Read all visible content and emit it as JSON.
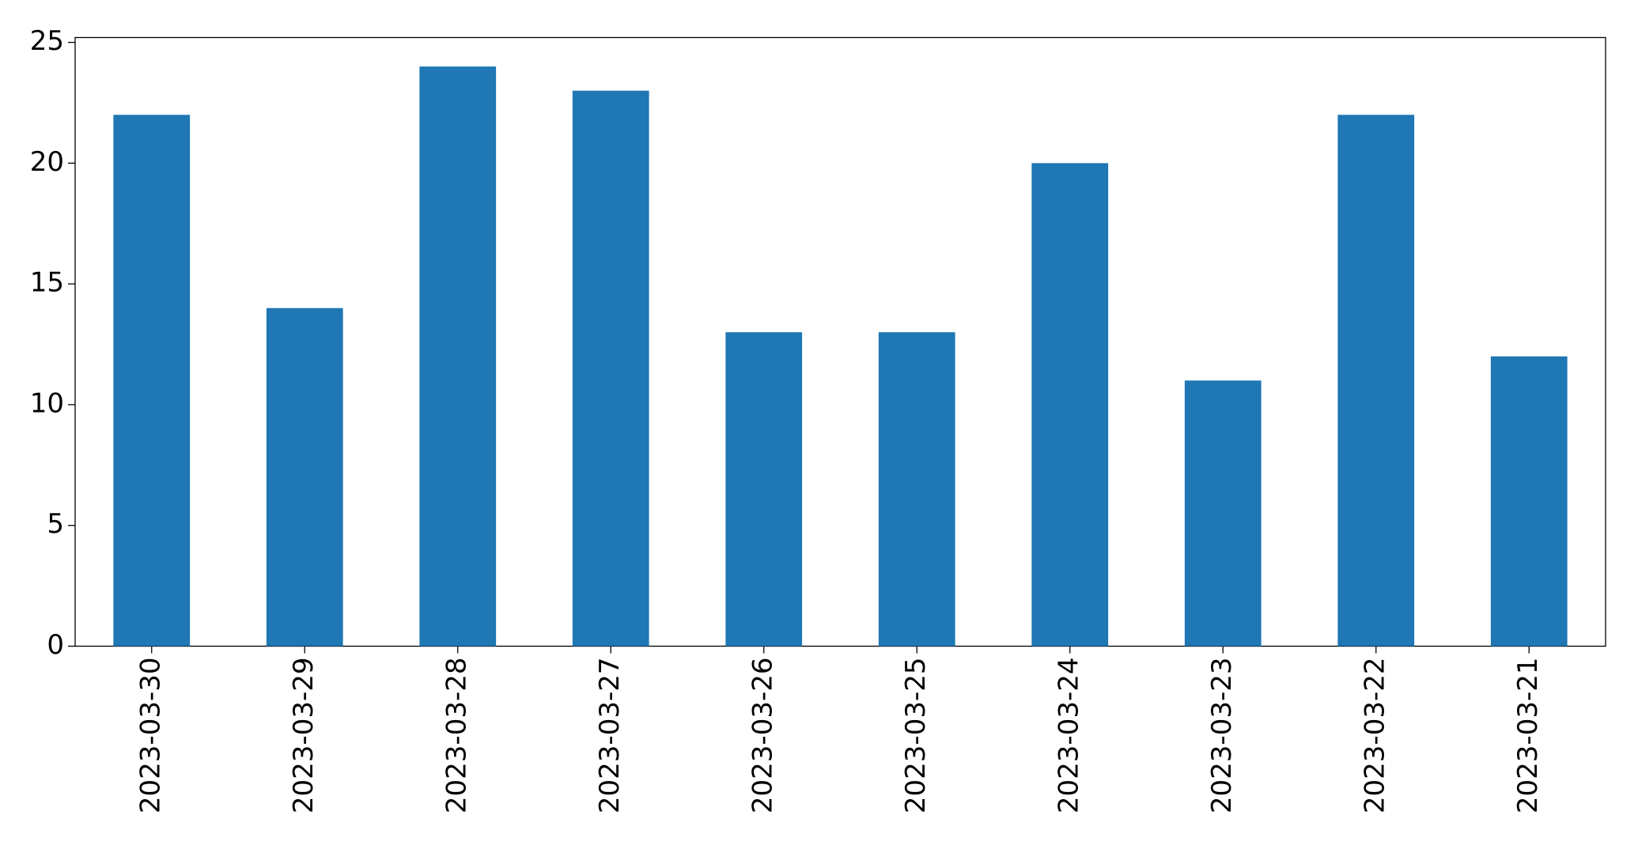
{
  "chart_data": {
    "type": "bar",
    "categories": [
      "2023-03-30",
      "2023-03-29",
      "2023-03-28",
      "2023-03-27",
      "2023-03-26",
      "2023-03-25",
      "2023-03-24",
      "2023-03-23",
      "2023-03-22",
      "2023-03-21"
    ],
    "values": [
      22,
      14,
      24,
      23,
      13,
      13,
      20,
      11,
      22,
      12
    ],
    "color": "#1f77b4",
    "ylim": [
      0,
      25.2
    ],
    "yticks": [
      0,
      5,
      10,
      15,
      20,
      25
    ],
    "grid": false
  }
}
